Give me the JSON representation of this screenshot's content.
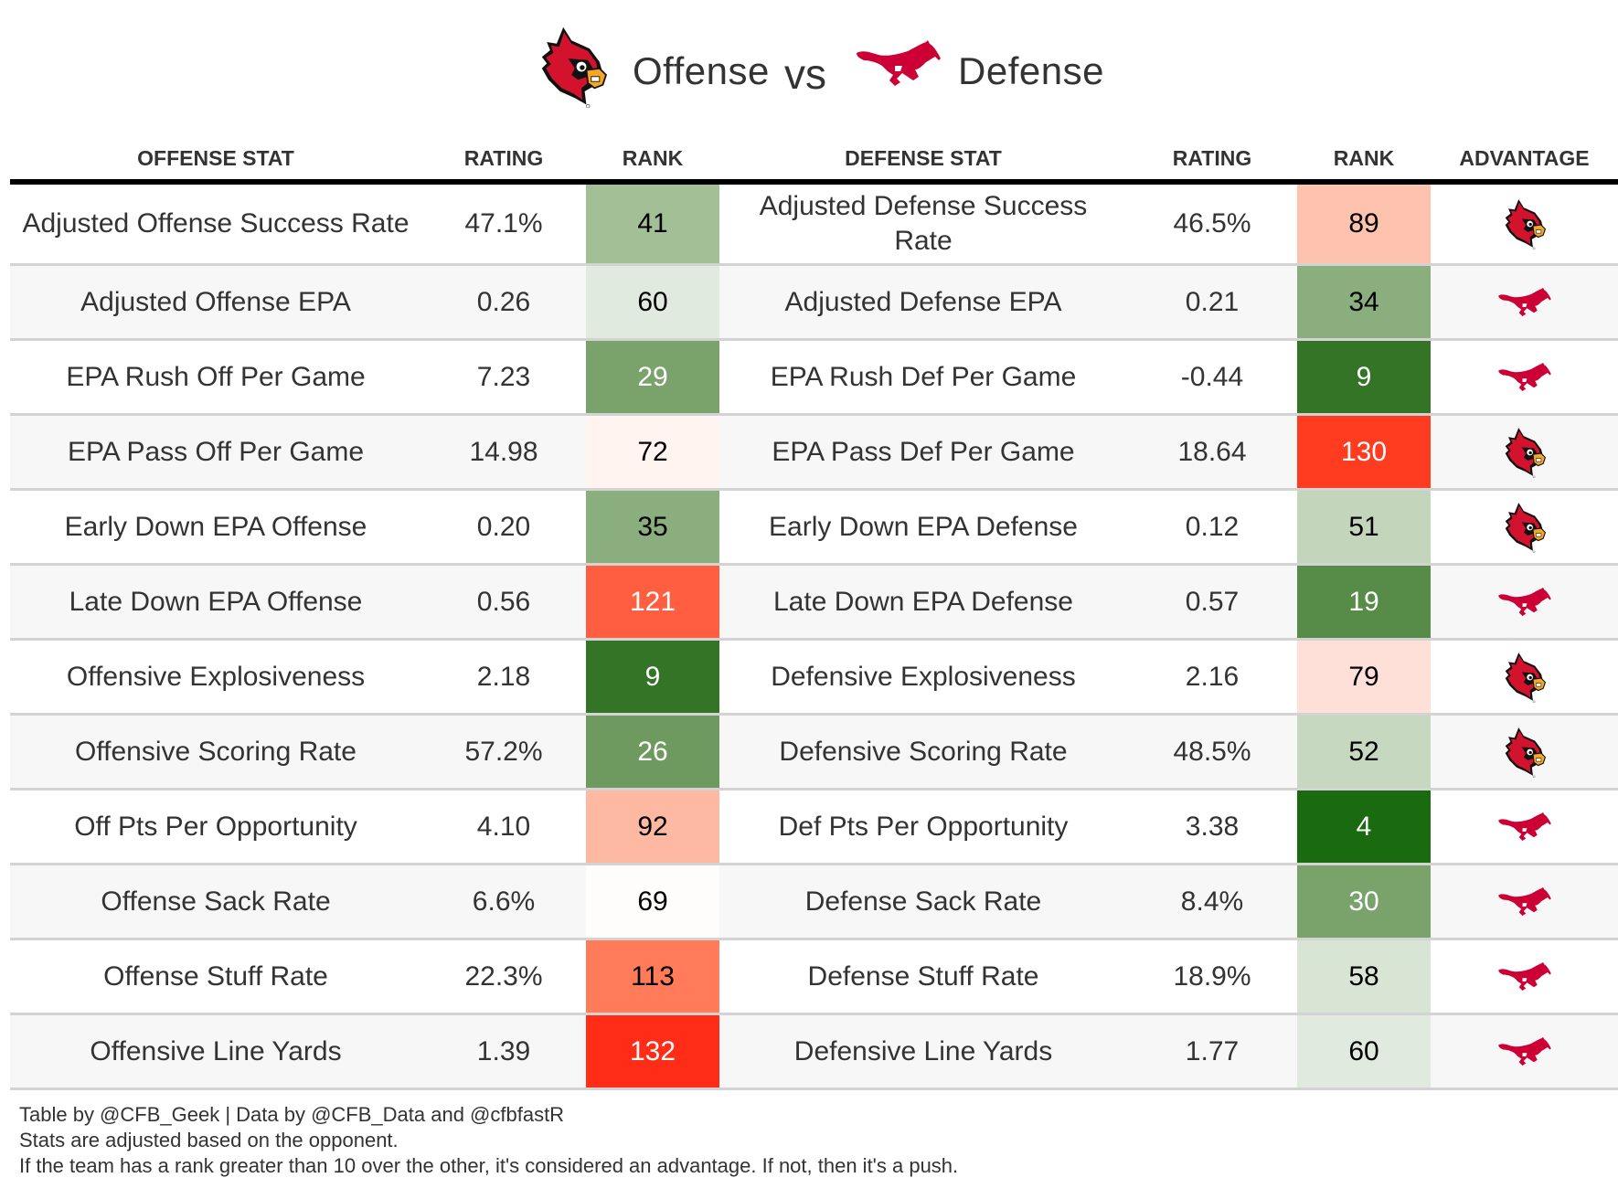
{
  "header": {
    "offense_team_icon": "louisville-cardinal-logo-icon",
    "defense_team_icon": "smu-mustang-logo-icon",
    "offense_label": "Offense",
    "vs_label": "vs",
    "defense_label": "Defense"
  },
  "colors": {
    "cardinal_red": "#d3122d",
    "cardinal_beak": "#f5a623",
    "mustang_red": "#cc0035"
  },
  "columns": {
    "offense_stat": "OFFENSE STAT",
    "offense_rating": "RATING",
    "offense_rank": "RANK",
    "defense_stat": "DEFENSE STAT",
    "defense_rating": "RATING",
    "defense_rank": "RANK",
    "advantage": "ADVANTAGE"
  },
  "rows": [
    {
      "off_stat": "Adjusted Offense Success Rate",
      "off_rating": "47.1%",
      "off_rank": "41",
      "off_rank_bg": "#a3bf96",
      "off_rank_fg": "#000000",
      "def_stat": "Adjusted Defense Success Rate",
      "def_rating": "46.5%",
      "def_rank": "89",
      "def_rank_bg": "#fec3ae",
      "def_rank_fg": "#000000",
      "advantage": "offense"
    },
    {
      "off_stat": "Adjusted Offense EPA",
      "off_rating": "0.26",
      "off_rank": "60",
      "off_rank_bg": "#e1eade",
      "off_rank_fg": "#000000",
      "def_stat": "Adjusted Defense EPA",
      "def_rating": "0.21",
      "def_rank": "34",
      "def_rank_bg": "#8aae7d",
      "def_rank_fg": "#000000",
      "advantage": "defense"
    },
    {
      "off_stat": "EPA Rush Off Per Game",
      "off_rating": "7.23",
      "off_rank": "29",
      "off_rank_bg": "#7aa36c",
      "off_rank_fg": "#ffffff",
      "def_stat": "EPA Rush Def Per Game",
      "def_rating": "-0.44",
      "def_rank": "9",
      "def_rank_bg": "#337426",
      "def_rank_fg": "#ffffff",
      "advantage": "defense"
    },
    {
      "off_stat": "EPA Pass Off Per Game",
      "off_rating": "14.98",
      "off_rank": "72",
      "off_rank_bg": "#fff4f0",
      "off_rank_fg": "#000000",
      "def_stat": "EPA Pass Def Per Game",
      "def_rating": "18.64",
      "def_rank": "130",
      "def_rank_bg": "#ff3b20",
      "def_rank_fg": "#ffffff",
      "advantage": "offense"
    },
    {
      "off_stat": "Early Down EPA Offense",
      "off_rating": "0.20",
      "off_rank": "35",
      "off_rank_bg": "#8aae7d",
      "off_rank_fg": "#000000",
      "def_stat": "Early Down EPA Defense",
      "def_rating": "0.12",
      "def_rank": "51",
      "def_rank_bg": "#c3d6bc",
      "def_rank_fg": "#000000",
      "advantage": "offense"
    },
    {
      "off_stat": "Late Down EPA Offense",
      "off_rating": "0.56",
      "off_rank": "121",
      "off_rank_bg": "#ff5f40",
      "off_rank_fg": "#ffffff",
      "def_stat": "Late Down EPA Defense",
      "def_rating": "0.57",
      "def_rank": "19",
      "def_rank_bg": "#568b48",
      "def_rank_fg": "#ffffff",
      "advantage": "defense"
    },
    {
      "off_stat": "Offensive Explosiveness",
      "off_rating": "2.18",
      "off_rank": "9",
      "off_rank_bg": "#337426",
      "off_rank_fg": "#ffffff",
      "def_stat": "Defensive Explosiveness",
      "def_rating": "2.16",
      "def_rank": "79",
      "def_rank_bg": "#ffe0d8",
      "def_rank_fg": "#000000",
      "advantage": "offense"
    },
    {
      "off_stat": "Offensive Scoring Rate",
      "off_rating": "57.2%",
      "off_rank": "26",
      "off_rank_bg": "#6e9a60",
      "off_rank_fg": "#ffffff",
      "def_stat": "Defensive Scoring Rate",
      "def_rating": "48.5%",
      "def_rank": "52",
      "def_rank_bg": "#c6d9c0",
      "def_rank_fg": "#000000",
      "advantage": "offense"
    },
    {
      "off_stat": "Off Pts Per Opportunity",
      "off_rating": "4.10",
      "off_rank": "92",
      "off_rank_bg": "#feb9a3",
      "off_rank_fg": "#000000",
      "def_stat": "Def Pts Per Opportunity",
      "def_rating": "3.38",
      "def_rank": "4",
      "def_rank_bg": "#1a6a10",
      "def_rank_fg": "#ffffff",
      "advantage": "defense"
    },
    {
      "off_stat": "Offense Sack Rate",
      "off_rating": "6.6%",
      "off_rank": "69",
      "off_rank_bg": "#fffdfb",
      "off_rank_fg": "#000000",
      "def_stat": "Defense Sack Rate",
      "def_rating": "8.4%",
      "def_rank": "30",
      "def_rank_bg": "#7aa36c",
      "def_rank_fg": "#ffffff",
      "advantage": "defense"
    },
    {
      "off_stat": "Offense Stuff Rate",
      "off_rating": "22.3%",
      "off_rank": "113",
      "off_rank_bg": "#ff7b5a",
      "off_rank_fg": "#000000",
      "def_stat": "Defense Stuff Rate",
      "def_rating": "18.9%",
      "def_rank": "58",
      "def_rank_bg": "#d9e5d4",
      "def_rank_fg": "#000000",
      "advantage": "defense"
    },
    {
      "off_stat": "Offensive Line Yards",
      "off_rating": "1.39",
      "off_rank": "132",
      "off_rank_bg": "#ff2d17",
      "off_rank_fg": "#ffffff",
      "def_stat": "Defensive Line Yards",
      "def_rating": "1.77",
      "def_rank": "60",
      "def_rank_bg": "#e1eade",
      "def_rank_fg": "#000000",
      "advantage": "defense"
    }
  ],
  "footer": {
    "line1": "Table by @CFB_Geek | Data by @CFB_Data and @cfbfastR",
    "line2": "Stats are adjusted based on the opponent.",
    "line3": "If the team has a rank greater than 10 over the other, it's considered an advantage. If not, then it's a push."
  }
}
